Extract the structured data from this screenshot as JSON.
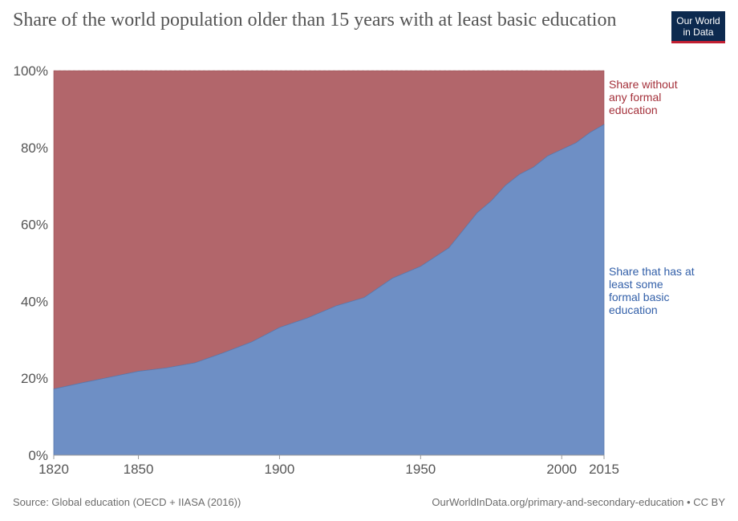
{
  "title": "Share of the world population older than 15 years with at least basic education",
  "logo": {
    "line1": "Our World",
    "line2": "in Data"
  },
  "footer": {
    "source": "Source: Global education (OECD + IIASA (2016))",
    "url": "OurWorldInData.org/primary-and-secondary-education • CC BY"
  },
  "colors": {
    "basic": "#6e8fc5",
    "no_education": "#b2666b",
    "basic_label": "#3360a9",
    "no_education_label": "#a4303a"
  },
  "chart_data": {
    "type": "area",
    "stacked": true,
    "x": [
      1820,
      1830,
      1840,
      1850,
      1860,
      1870,
      1880,
      1890,
      1900,
      1910,
      1920,
      1930,
      1940,
      1950,
      1960,
      1970,
      1975,
      1980,
      1985,
      1990,
      1995,
      2000,
      2005,
      2010,
      2015
    ],
    "series": [
      {
        "name": "Share that has at least some formal basic education",
        "label_lines": [
          "Share that has at",
          "least some",
          "formal basic",
          "education"
        ],
        "values": [
          17.2,
          18.8,
          20.3,
          21.8,
          22.7,
          24,
          26.6,
          29.4,
          33.2,
          35.7,
          38.8,
          41,
          46,
          49.1,
          53.9,
          63,
          66.1,
          70.1,
          73,
          74.9,
          77.8,
          79.5,
          81.2,
          83.9,
          86
        ]
      },
      {
        "name": "Share without any formal education",
        "label_lines": [
          "Share without",
          "any formal",
          "education"
        ],
        "values": [
          82.8,
          81.2,
          79.7,
          78.2,
          77.3,
          76,
          73.4,
          70.6,
          66.8,
          64.3,
          61.2,
          59,
          54,
          50.9,
          46.1,
          37,
          33.9,
          29.9,
          27,
          25.1,
          22.2,
          20.5,
          18.8,
          16.1,
          14
        ]
      }
    ],
    "x_ticks": [
      "1820",
      "1850",
      "1900",
      "1950",
      "2000",
      "2015"
    ],
    "x_tick_values": [
      1820,
      1850,
      1900,
      1950,
      2000,
      2015
    ],
    "y_ticks": [
      "0%",
      "20%",
      "40%",
      "60%",
      "80%",
      "100%"
    ],
    "y_tick_values": [
      0,
      20,
      40,
      60,
      80,
      100
    ],
    "xlim": [
      1820,
      2015
    ],
    "ylim": [
      0,
      100
    ],
    "grid": true,
    "legend": "right, inline labels"
  }
}
